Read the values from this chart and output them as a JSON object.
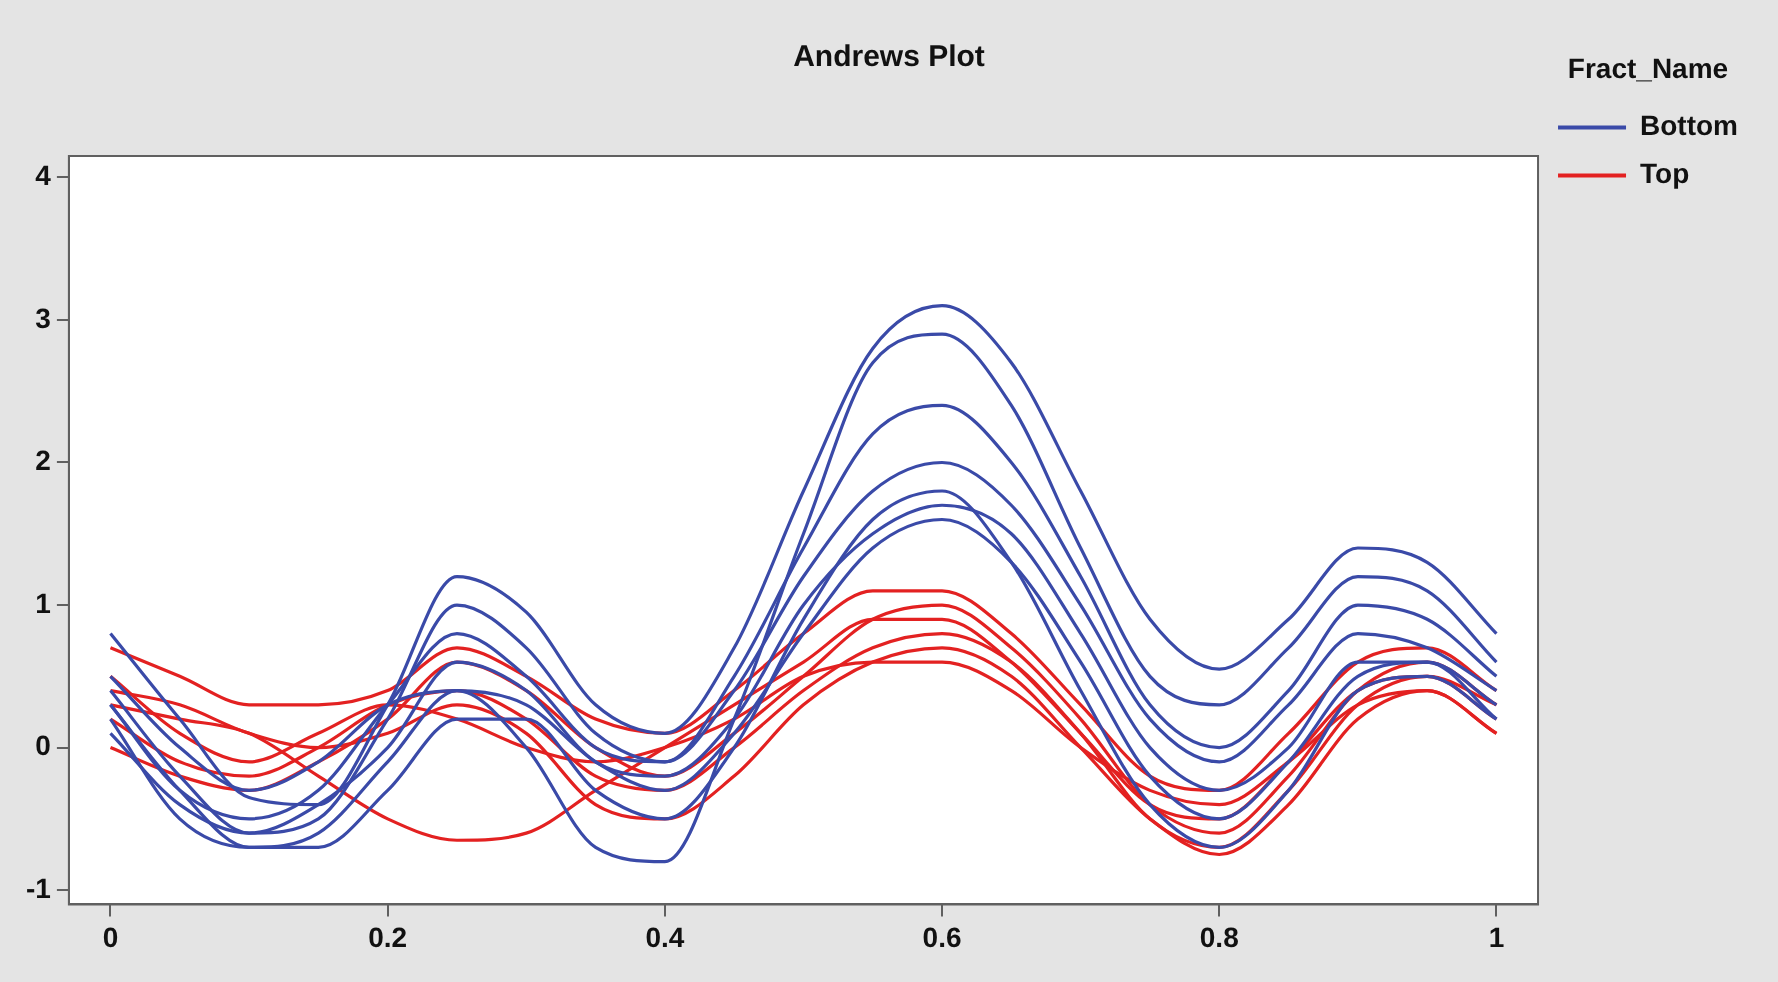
{
  "chart_data": {
    "type": "line",
    "title": "Andrews Plot",
    "legend_title": "Fract_Name",
    "legend": "right",
    "grid": false,
    "marker": "none",
    "line_style": "solid",
    "x": [
      0,
      0.05,
      0.1,
      0.15,
      0.2,
      0.25,
      0.3,
      0.35,
      0.4,
      0.45,
      0.5,
      0.55,
      0.6,
      0.65,
      0.7,
      0.75,
      0.8,
      0.85,
      0.9,
      0.95,
      1
    ],
    "xlim": [
      -0.03,
      1.03
    ],
    "xticks": [
      0,
      0.2,
      0.4,
      0.6,
      0.8,
      1
    ],
    "ylim": [
      -1.1,
      4.15
    ],
    "yticks": [
      -1,
      0,
      1,
      2,
      3,
      4
    ],
    "series": [
      {
        "name": "Bottom",
        "color": "#3a4aa8",
        "values": [
          0.8,
          0.2,
          -0.35,
          -0.4,
          0.3,
          1.2,
          0.95,
          0.3,
          0.1,
          0.7,
          1.8,
          2.8,
          3.1,
          2.7,
          1.8,
          0.9,
          0.55,
          0.9,
          1.4,
          1.3,
          0.8
        ]
      },
      {
        "color": "#3a4aa8",
        "values": [
          0.5,
          0,
          -0.3,
          -0.1,
          0.3,
          0.4,
          0,
          -0.7,
          -0.8,
          0.2,
          1.5,
          2.7,
          2.9,
          2.4,
          1.4,
          0.5,
          0.3,
          0.7,
          1.2,
          1.1,
          0.6
        ]
      },
      {
        "color": "#3a4aa8",
        "values": [
          0.3,
          -0.3,
          -0.5,
          -0.3,
          0.3,
          0.8,
          0.5,
          0,
          -0.1,
          0.4,
          1.2,
          1.8,
          2,
          1.7,
          1,
          0.2,
          -0.1,
          0.3,
          0.8,
          0.7,
          0.4
        ]
      },
      {
        "color": "#3a4aa8",
        "values": [
          0.2,
          -0.5,
          -0.7,
          -0.6,
          -0.1,
          0.4,
          0.3,
          -0.1,
          -0.3,
          0.1,
          0.8,
          1.4,
          1.6,
          1.3,
          0.6,
          -0.2,
          -0.5,
          -0.1,
          0.5,
          0.6,
          0.3
        ]
      },
      {
        "color": "#3a4aa8",
        "values": [
          0.4,
          -0.2,
          -0.6,
          -0.5,
          0.2,
          1,
          0.7,
          0.1,
          -0.1,
          0.5,
          1.4,
          2.2,
          2.4,
          2,
          1.2,
          0.3,
          0,
          0.4,
          1,
          0.9,
          0.5
        ]
      },
      {
        "color": "#3a4aa8",
        "values": [
          0.1,
          -0.4,
          -0.6,
          -0.4,
          0,
          0.6,
          0.4,
          -0.1,
          -0.2,
          0.2,
          1,
          1.5,
          1.7,
          1.5,
          0.8,
          0,
          -0.3,
          0,
          0.6,
          0.6,
          0.2
        ]
      },
      {
        "color": "#3a4aa8",
        "values": [
          0.3,
          -0.3,
          -0.7,
          -0.7,
          -0.3,
          0.2,
          0.2,
          -0.3,
          -0.5,
          0,
          0.9,
          1.6,
          1.8,
          1.3,
          0.4,
          -0.4,
          -0.7,
          -0.3,
          0.4,
          0.5,
          0.2
        ]
      },
      {
        "name": "Top",
        "color": "#e32121",
        "values": [
          0.7,
          0.5,
          0.3,
          0.3,
          0.4,
          0.7,
          0.5,
          0.2,
          0.1,
          0.4,
          0.8,
          1.1,
          1.1,
          0.8,
          0.3,
          -0.2,
          -0.3,
          0.1,
          0.6,
          0.7,
          0.4
        ]
      },
      {
        "color": "#e32121",
        "values": [
          0.3,
          0.2,
          0.1,
          -0.2,
          -0.5,
          -0.65,
          -0.6,
          -0.3,
          0,
          0.3,
          0.6,
          0.9,
          0.9,
          0.6,
          0.1,
          -0.4,
          -0.5,
          -0.1,
          0.4,
          0.5,
          0.3
        ]
      },
      {
        "color": "#e32121",
        "values": [
          0.2,
          -0.1,
          -0.2,
          0,
          0.3,
          0.4,
          0.2,
          -0.2,
          -0.3,
          0,
          0.4,
          0.7,
          0.8,
          0.6,
          0.1,
          -0.5,
          -0.7,
          -0.3,
          0.3,
          0.5,
          0.2
        ]
      },
      {
        "color": "#e32121",
        "values": [
          0.5,
          0.1,
          -0.1,
          0.1,
          0.3,
          0.2,
          0,
          -0.1,
          0,
          0.2,
          0.5,
          0.6,
          0.6,
          0.4,
          0,
          -0.3,
          -0.4,
          -0.1,
          0.3,
          0.4,
          0.1
        ]
      },
      {
        "color": "#e32121",
        "values": [
          0,
          -0.2,
          -0.3,
          -0.1,
          0.2,
          0.6,
          0.4,
          0,
          -0.2,
          0.1,
          0.5,
          0.9,
          1,
          0.7,
          0.2,
          -0.4,
          -0.6,
          -0.2,
          0.4,
          0.6,
          0.3
        ]
      },
      {
        "color": "#e32121",
        "values": [
          0.4,
          0.3,
          0.1,
          0,
          0.1,
          0.3,
          0.1,
          -0.4,
          -0.5,
          -0.2,
          0.3,
          0.6,
          0.7,
          0.5,
          0,
          -0.5,
          -0.75,
          -0.4,
          0.2,
          0.4,
          0.1
        ]
      }
    ]
  }
}
